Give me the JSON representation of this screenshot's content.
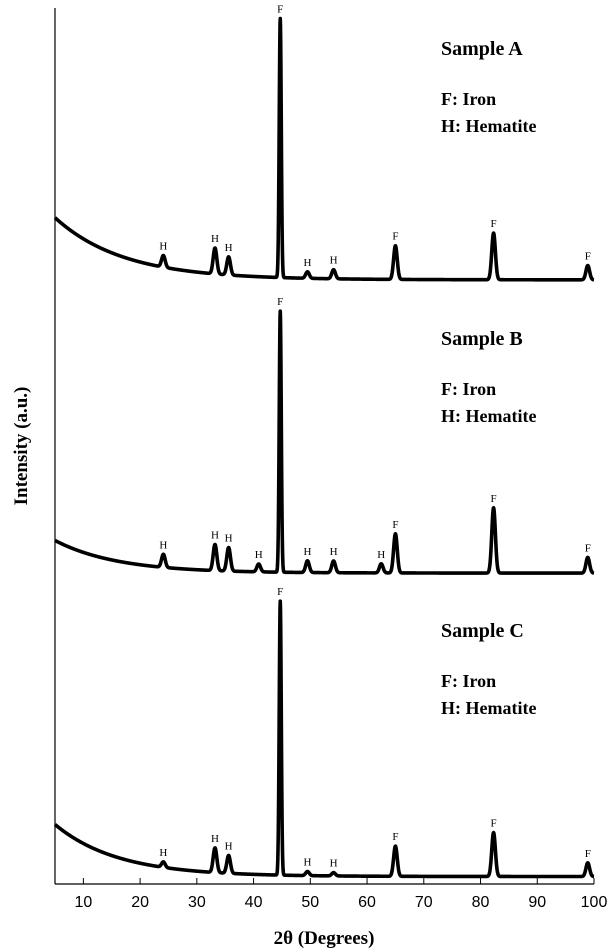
{
  "chart_data": {
    "type": "line",
    "xlabel": "2θ (Degrees)",
    "ylabel": "Intensity (a.u.)",
    "xlim": [
      5,
      100
    ],
    "x_ticks": [
      10,
      20,
      30,
      40,
      50,
      60,
      70,
      80,
      90,
      100
    ],
    "panels": [
      {
        "name": "Sample A",
        "legend": [
          "F: Iron",
          "H: Hematite"
        ],
        "background": {
          "start": 0.26,
          "end": 0.02,
          "decay": 12
        },
        "peaks": [
          {
            "x": 24.1,
            "height": 0.045,
            "label": "H"
          },
          {
            "x": 33.2,
            "height": 0.1,
            "label": "H"
          },
          {
            "x": 35.6,
            "height": 0.07,
            "label": "H"
          },
          {
            "x": 44.7,
            "height": 1.0,
            "label": "F"
          },
          {
            "x": 49.5,
            "height": 0.025,
            "label": "H"
          },
          {
            "x": 54.1,
            "height": 0.035,
            "label": "H"
          },
          {
            "x": 65.0,
            "height": 0.13,
            "label": "F"
          },
          {
            "x": 82.3,
            "height": 0.18,
            "label": "F"
          },
          {
            "x": 98.9,
            "height": 0.055,
            "label": "F"
          }
        ]
      },
      {
        "name": "Sample B",
        "legend": [
          "F: Iron",
          "H: Hematite"
        ],
        "background": {
          "start": 0.14,
          "end": 0.015,
          "decay": 11
        },
        "peaks": [
          {
            "x": 24.1,
            "height": 0.05,
            "label": "H"
          },
          {
            "x": 33.2,
            "height": 0.1,
            "label": "H"
          },
          {
            "x": 35.6,
            "height": 0.09,
            "label": "H"
          },
          {
            "x": 40.9,
            "height": 0.03,
            "label": "H"
          },
          {
            "x": 44.7,
            "height": 1.0,
            "label": "F"
          },
          {
            "x": 49.5,
            "height": 0.045,
            "label": "H"
          },
          {
            "x": 54.1,
            "height": 0.045,
            "label": "H"
          },
          {
            "x": 62.5,
            "height": 0.035,
            "label": "H"
          },
          {
            "x": 65.0,
            "height": 0.15,
            "label": "F"
          },
          {
            "x": 82.3,
            "height": 0.25,
            "label": "F"
          },
          {
            "x": 98.9,
            "height": 0.06,
            "label": "F"
          }
        ]
      },
      {
        "name": "Sample C",
        "legend": [
          "F: Iron",
          "H: Hematite"
        ],
        "background": {
          "start": 0.21,
          "end": 0.02,
          "decay": 11
        },
        "peaks": [
          {
            "x": 24.1,
            "height": 0.02,
            "label": "H"
          },
          {
            "x": 33.2,
            "height": 0.09,
            "label": "H"
          },
          {
            "x": 35.6,
            "height": 0.065,
            "label": "H"
          },
          {
            "x": 44.7,
            "height": 1.0,
            "label": "F"
          },
          {
            "x": 49.5,
            "height": 0.015,
            "label": "H"
          },
          {
            "x": 54.1,
            "height": 0.012,
            "label": "H"
          },
          {
            "x": 65.0,
            "height": 0.11,
            "label": "F"
          },
          {
            "x": 82.3,
            "height": 0.16,
            "label": "F"
          },
          {
            "x": 98.9,
            "height": 0.05,
            "label": "F"
          }
        ]
      }
    ]
  }
}
